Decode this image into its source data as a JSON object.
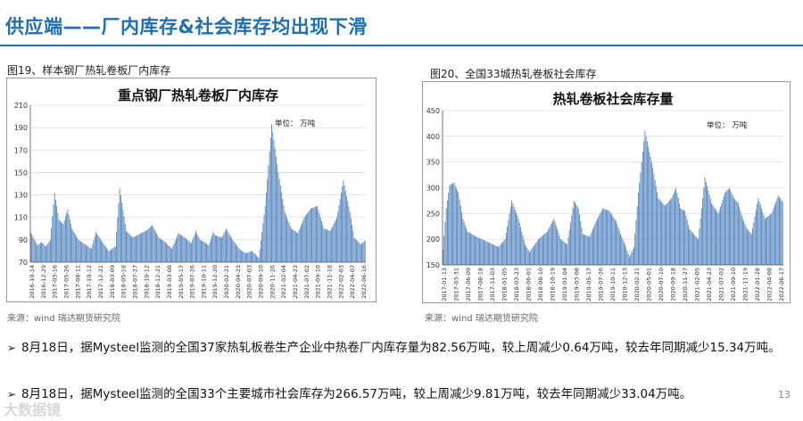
{
  "slide": {
    "title": "供应端——厂内库存&社会库存均出现下滑",
    "page_number": "13",
    "watermark": "大数据镜"
  },
  "figures": [
    {
      "caption": "图19、样本钢厂热轧卷板厂内库存",
      "source": "来源：wind   瑞达期货研究院"
    },
    {
      "caption": "图20、全国33城热轧卷板社会库存",
      "source": "来源：wind   瑞达期货研究院"
    }
  ],
  "bullets": [
    "8月18日，据Mysteel监测的全国37家热轧板卷生产企业中热卷厂内库存量为82.56万吨，较上周减少0.64万吨，较去年同期减少15.34万吨。",
    "8月18日，据Mysteel监测的全国33个主要城市社会库存为266.57万吨，较上周减少9.81万吨，较去年同期减少33.04万吨。"
  ],
  "chart_data": [
    {
      "type": "bar",
      "title": "重点钢厂热轧卷板厂内库存",
      "unit_label": "单位：  万吨",
      "color": "#4f81bd",
      "ylim": [
        70,
        210
      ],
      "yticks": [
        70,
        90,
        110,
        130,
        150,
        170,
        190,
        210
      ],
      "xtick_labels": [
        "2016-10-14",
        "2016-12-29",
        "2017-03-16",
        "2017-05-26",
        "2017-08-11",
        "2017-10-12",
        "2017-12-21",
        "2018-03-09",
        "2018-05-18",
        "2018-07-27",
        "2018-10-12",
        "2018-12-21",
        "2019-03-08",
        "2019-05-17",
        "2019-07-26",
        "2019-10-11",
        "2019-12-20",
        "2020-02-21",
        "2020-04-23",
        "2020-07-03",
        "2020-09-10",
        "2020-11-26",
        "2021-02-04",
        "2021-04-23",
        "2021-07-02",
        "2021-09-10",
        "2021-11-18",
        "2022-02-03",
        "2022-04-07",
        "2022-06-16"
      ],
      "anchors_x": [
        0,
        6,
        10,
        14,
        18,
        22,
        26,
        30,
        34,
        38,
        44,
        50,
        56,
        60,
        66,
        72,
        78,
        82,
        88,
        94,
        100,
        106,
        112,
        118,
        124,
        130,
        136,
        142,
        148,
        152,
        156,
        160,
        164,
        168,
        170,
        176,
        180,
        186,
        192,
        198,
        204,
        210,
        216,
        222,
        228,
        234,
        240,
        246,
        252,
        258,
        264,
        270,
        276,
        282,
        288,
        294,
        298,
        304,
        309
      ],
      "anchors_y": [
        97,
        85,
        88,
        84,
        90,
        132,
        108,
        104,
        117,
        100,
        90,
        86,
        82,
        97,
        88,
        80,
        84,
        136,
        98,
        92,
        95,
        98,
        103,
        92,
        88,
        82,
        96,
        92,
        87,
        98,
        90,
        88,
        85,
        97,
        94,
        92,
        100,
        90,
        82,
        78,
        80,
        74,
        120,
        193,
        150,
        115,
        100,
        96,
        110,
        118,
        120,
        100,
        98,
        110,
        143,
        115,
        92,
        86,
        90
      ],
      "bars_approx_count": 309
    },
    {
      "type": "bar",
      "title": "热轧卷板社会库存量",
      "unit_label": "单位：  万吨",
      "color": "#4f81bd",
      "ylim": [
        150,
        450
      ],
      "yticks": [
        150,
        200,
        250,
        300,
        350,
        400,
        450
      ],
      "xtick_labels": [
        "2017-01-13",
        "2017-03-31",
        "2017-06-09",
        "2017-08-18",
        "2017-11-03",
        "2018-01-05",
        "2018-03-23",
        "2018-06-01",
        "2018-08-10",
        "2018-10-19",
        "2019-01-04",
        "2019-03-08",
        "2019-05-17",
        "2019-07-26",
        "2019-10-11",
        "2019-12-13",
        "2020-02-21",
        "2020-05-01",
        "2020-07-10",
        "2020-09-18",
        "2020-11-27",
        "2021-02-05",
        "2021-04-23",
        "2021-07-02",
        "2021-09-10",
        "2021-11-19",
        "2022-01-28",
        "2022-04-08",
        "2022-06-17"
      ],
      "anchors_x": [
        0,
        3,
        6,
        10,
        14,
        18,
        22,
        30,
        40,
        50,
        56,
        62,
        68,
        74,
        78,
        86,
        94,
        100,
        106,
        112,
        118,
        122,
        126,
        132,
        138,
        144,
        150,
        156,
        160,
        164,
        168,
        172,
        176,
        182,
        188,
        194,
        200,
        206,
        210,
        214,
        218,
        222,
        230,
        236,
        242,
        248,
        254,
        258,
        262,
        266,
        270,
        274,
        278,
        284,
        290,
        296,
        302,
        307
      ],
      "anchors_y": [
        180,
        260,
        305,
        310,
        290,
        240,
        215,
        205,
        195,
        185,
        200,
        275,
        240,
        190,
        175,
        200,
        215,
        240,
        200,
        190,
        275,
        260,
        210,
        205,
        235,
        260,
        255,
        235,
        210,
        190,
        165,
        185,
        290,
        410,
        350,
        280,
        265,
        280,
        300,
        260,
        255,
        220,
        200,
        320,
        270,
        250,
        290,
        300,
        280,
        270,
        240,
        220,
        210,
        280,
        240,
        250,
        285,
        270
      ],
      "bars_approx_count": 307
    }
  ]
}
